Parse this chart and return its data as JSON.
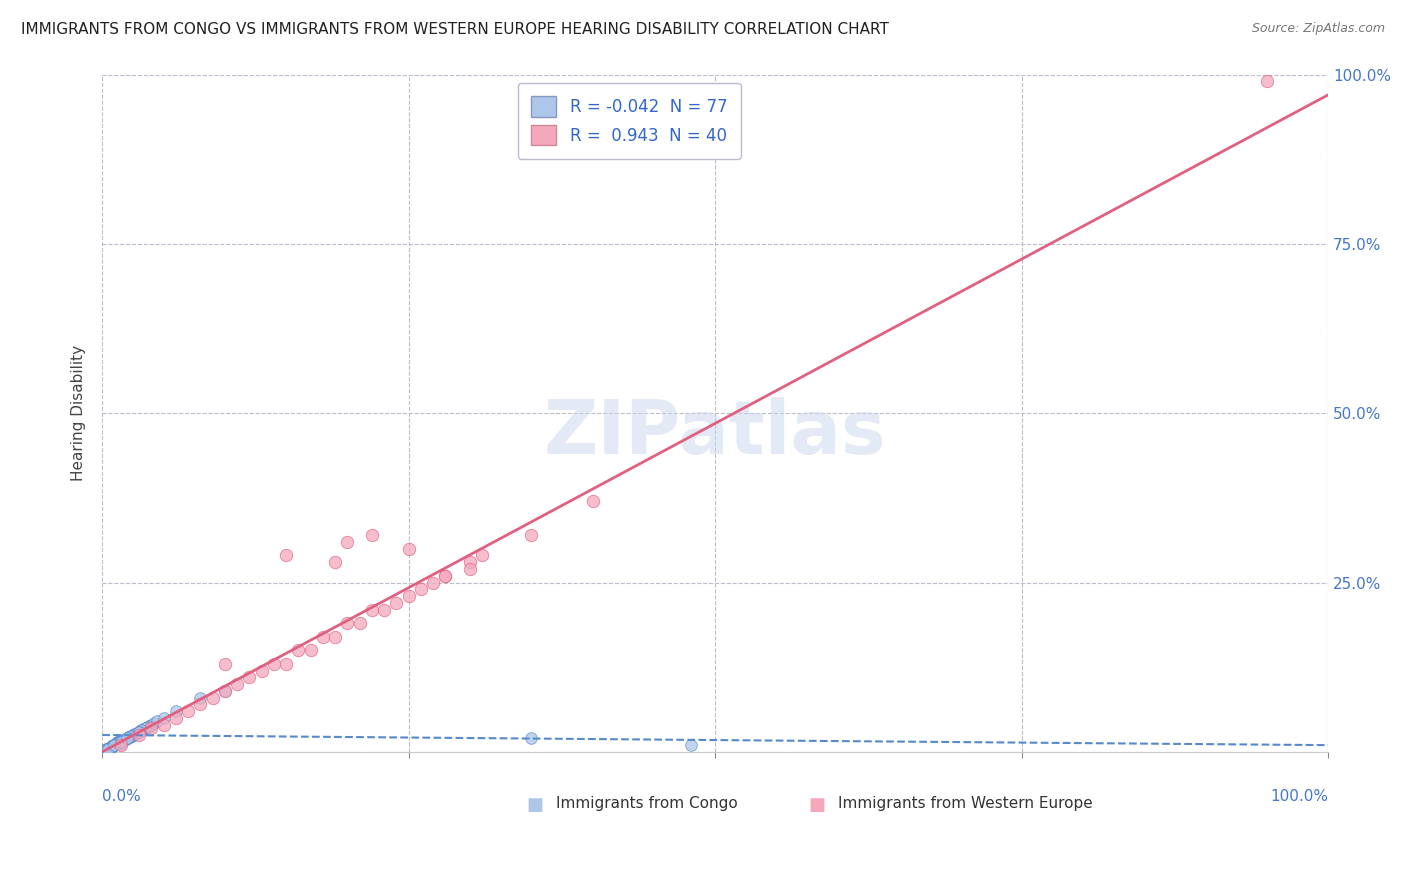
{
  "title": "IMMIGRANTS FROM CONGO VS IMMIGRANTS FROM WESTERN EUROPE HEARING DISABILITY CORRELATION CHART",
  "source": "Source: ZipAtlas.com",
  "ylabel": "Hearing Disability",
  "xlim": [
    0,
    100
  ],
  "ylim": [
    0,
    100
  ],
  "congo_R": -0.042,
  "congo_N": 77,
  "we_R": 0.943,
  "we_N": 40,
  "congo_color": "#aec6e8",
  "we_color": "#f4a8bc",
  "congo_line_color": "#5588cc",
  "we_line_color": "#e06080",
  "legend_color": "#3366cc",
  "watermark": "ZIPatlas",
  "background_color": "#ffffff",
  "grid_color": "#bbbbcc",
  "title_color": "#222222",
  "axis_label_color": "#4477cc",
  "we_scatter_x": [
    1.5,
    3,
    5,
    7,
    4,
    8,
    10,
    6,
    12,
    9,
    14,
    11,
    16,
    13,
    18,
    15,
    20,
    17,
    22,
    19,
    24,
    21,
    26,
    23,
    28,
    25,
    30,
    27,
    19,
    22,
    25,
    28,
    31,
    35,
    40,
    15,
    20,
    10,
    30,
    95
  ],
  "we_scatter_y": [
    1,
    2.5,
    4,
    6,
    3.5,
    7,
    9,
    5,
    11,
    8,
    13,
    10,
    15,
    12,
    17,
    13,
    19,
    15,
    21,
    17,
    22,
    19,
    24,
    21,
    26,
    23,
    28,
    25,
    28,
    32,
    30,
    26,
    29,
    32,
    37,
    29,
    31,
    13,
    27,
    99
  ],
  "congo_cluster_x": [
    0.5,
    1.0,
    1.5,
    0.8,
    1.2,
    2.0,
    0.3,
    0.7,
    1.8,
    2.5,
    0.4,
    0.9,
    1.3,
    2.2,
    3.0,
    0.6,
    1.1,
    1.7,
    2.8,
    3.5,
    0.5,
    1.4,
    2.1,
    3.2,
    0.8,
    1.6,
    2.4,
    3.8,
    0.3,
    0.6,
    1.0,
    1.5,
    2.0,
    2.7,
    4.0,
    0.4,
    0.9,
    1.3,
    1.8,
    2.5,
    3.3,
    0.5,
    1.1,
    1.9,
    2.6,
    3.7,
    0.7,
    1.4,
    2.2,
    3.0,
    0.6,
    1.2,
    1.7,
    2.4,
    3.5,
    0.8,
    1.5,
    2.3,
    3.2,
    4.2,
    0.4,
    0.9,
    1.6,
    2.1,
    3.0,
    4.5,
    5.0,
    6.0,
    8.0,
    10.0,
    35.0,
    48.0,
    0.5,
    1.0,
    1.5,
    2.0,
    3.0
  ],
  "congo_cluster_y": [
    0.5,
    1.0,
    1.2,
    0.8,
    1.5,
    2.0,
    0.4,
    0.7,
    1.8,
    2.5,
    0.5,
    1.0,
    1.4,
    2.2,
    3.0,
    0.6,
    1.1,
    1.7,
    2.8,
    3.5,
    0.5,
    1.4,
    2.1,
    3.2,
    0.8,
    1.6,
    2.4,
    3.8,
    0.3,
    0.6,
    1.0,
    1.5,
    2.0,
    2.7,
    4.0,
    0.4,
    0.9,
    1.3,
    1.8,
    2.5,
    3.3,
    0.5,
    1.1,
    1.9,
    2.6,
    3.7,
    0.7,
    1.4,
    2.2,
    3.0,
    0.6,
    1.2,
    1.7,
    2.4,
    3.5,
    0.8,
    1.5,
    2.3,
    3.2,
    4.2,
    0.4,
    0.9,
    1.6,
    2.1,
    3.0,
    4.5,
    5.0,
    6.0,
    8.0,
    9.0,
    2.0,
    1.0,
    0.5,
    1.0,
    1.5,
    2.0,
    3.0
  ]
}
